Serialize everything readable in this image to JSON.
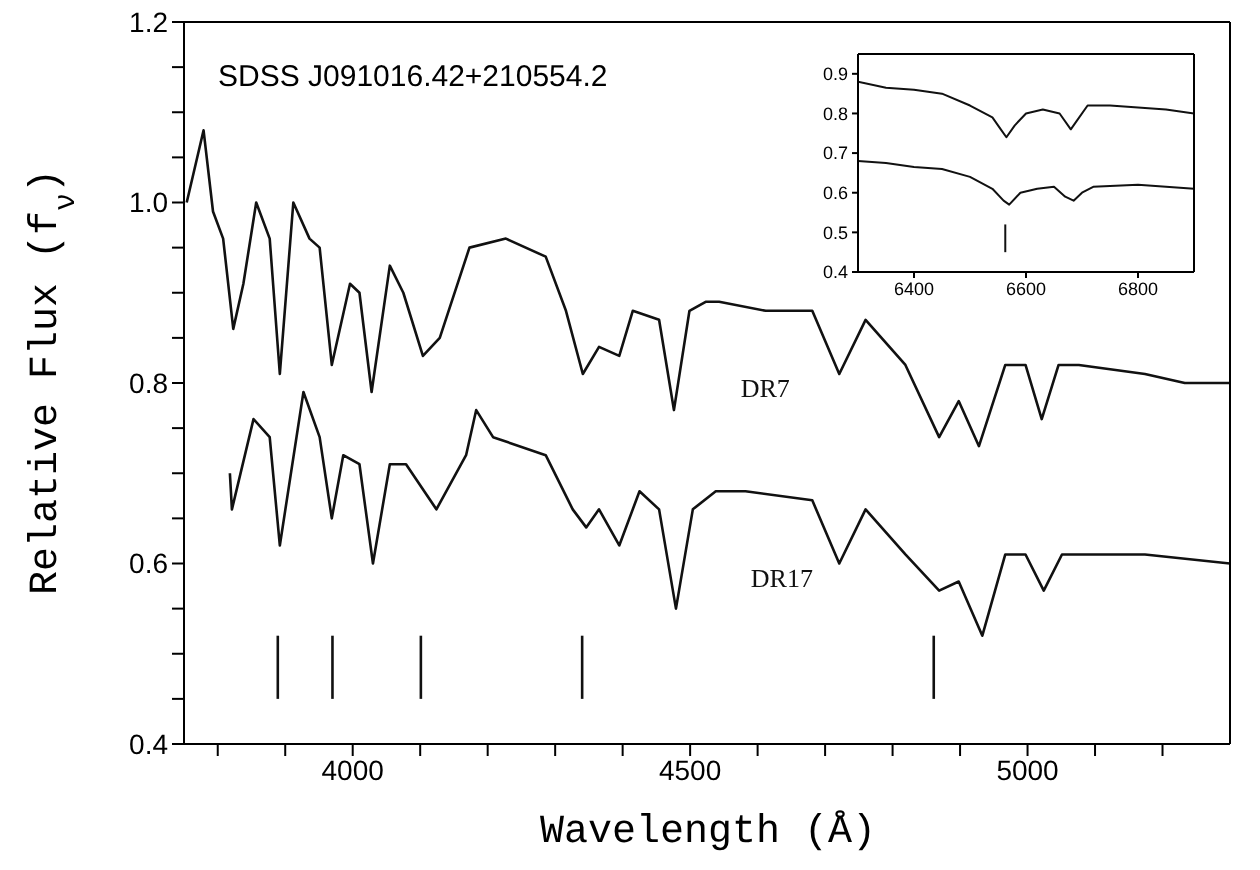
{
  "chart_data": [
    {
      "type": "line",
      "title": "SDSS J091016.42+210554.2",
      "xlabel": "Wavelength (Å)",
      "ylabel": "Relative Flux (f$_{ν}$)",
      "xlim": [
        3750,
        5300
      ],
      "xticks": [
        {
          "value": 3800,
          "label": null
        },
        {
          "value": 3900,
          "label": null
        },
        4000,
        {
          "value": 4100,
          "label": null
        },
        {
          "value": 4200,
          "label": null
        },
        {
          "value": 4300,
          "label": null
        },
        {
          "value": 4400,
          "label": null
        },
        4500,
        {
          "value": 4600,
          "label": null
        },
        {
          "value": 4700,
          "label": null
        },
        {
          "value": 4800,
          "label": null
        },
        {
          "value": 4900,
          "label": null
        },
        5000,
        {
          "value": 5100,
          "label": null
        },
        {
          "value": 5200,
          "label": null
        }
      ],
      "ylim": [
        0.4,
        1.2
      ],
      "yticks": [
        0.4,
        {
          "value": 0.45,
          "label": null
        },
        {
          "value": 0.5,
          "label": null
        },
        {
          "value": 0.55,
          "label": null
        },
        0.6,
        {
          "value": 0.65,
          "label": null
        },
        {
          "value": 0.7,
          "label": null
        },
        {
          "value": 0.75,
          "label": null
        },
        0.8,
        {
          "value": 0.85,
          "label": null
        },
        {
          "value": 0.9,
          "label": null
        },
        {
          "value": 0.95,
          "label": null
        },
        {
          "value": 1.0,
          "label": "1.0"
        },
        {
          "value": 1.05,
          "label": null
        },
        {
          "value": 1.1,
          "label": null
        },
        {
          "value": 1.15,
          "label": null
        },
        1.2
      ],
      "series": [
        {
          "name": "DR7",
          "color": "#111111",
          "x": [
            3754,
            3779,
            3793,
            3808,
            3823,
            3838,
            3857,
            3877,
            3892,
            3912,
            3936,
            3951,
            3969,
            3996,
            4010,
            4028,
            4055,
            4075,
            4104,
            4129,
            4173,
            4227,
            4286,
            4316,
            4341,
            4365,
            4395,
            4415,
            4454,
            4476,
            4499,
            4523,
            4543,
            4612,
            4681,
            4721,
            4760,
            4819,
            4869,
            4898,
            4928,
            4967,
            4997,
            5021,
            5046,
            5076,
            5174,
            5233,
            5300
          ],
          "values": [
            1.0,
            1.08,
            0.99,
            0.96,
            0.86,
            0.91,
            1.0,
            0.96,
            0.81,
            1.0,
            0.96,
            0.95,
            0.82,
            0.91,
            0.9,
            0.79,
            0.93,
            0.9,
            0.83,
            0.85,
            0.95,
            0.96,
            0.94,
            0.88,
            0.81,
            0.84,
            0.83,
            0.88,
            0.87,
            0.77,
            0.88,
            0.89,
            0.89,
            0.88,
            0.88,
            0.81,
            0.87,
            0.82,
            0.74,
            0.78,
            0.73,
            0.82,
            0.82,
            0.76,
            0.82,
            0.82,
            0.81,
            0.8,
            0.8
          ]
        },
        {
          "name": "DR17",
          "color": "#111111",
          "x": [
            3818,
            3821,
            3853,
            3877,
            3892,
            3927,
            3951,
            3969,
            3986,
            4010,
            4030,
            4055,
            4079,
            4124,
            4168,
            4183,
            4208,
            4286,
            4326,
            4346,
            4365,
            4395,
            4425,
            4454,
            4479,
            4504,
            4538,
            4582,
            4681,
            4721,
            4760,
            4819,
            4869,
            4898,
            4933,
            4967,
            4997,
            5024,
            5051,
            5095,
            5174,
            5300
          ],
          "values": [
            0.7,
            0.66,
            0.76,
            0.74,
            0.62,
            0.79,
            0.74,
            0.65,
            0.72,
            0.71,
            0.6,
            0.71,
            0.71,
            0.66,
            0.72,
            0.77,
            0.74,
            0.72,
            0.66,
            0.64,
            0.66,
            0.62,
            0.68,
            0.66,
            0.55,
            0.66,
            0.68,
            0.68,
            0.67,
            0.6,
            0.66,
            0.61,
            0.57,
            0.58,
            0.52,
            0.61,
            0.61,
            0.57,
            0.61,
            0.61,
            0.61,
            0.6
          ]
        },
        {
          "color": "#111111",
          "x": [
            3889,
            3889
          ],
          "values": [
            0.45,
            0.52
          ]
        },
        {
          "color": "#111111",
          "x": [
            3970,
            3970
          ],
          "values": [
            0.45,
            0.52
          ]
        },
        {
          "color": "#111111",
          "x": [
            4101,
            4101
          ],
          "values": [
            0.45,
            0.52
          ]
        },
        {
          "color": "#111111",
          "x": [
            4340,
            4340
          ],
          "values": [
            0.45,
            0.52
          ]
        },
        {
          "color": "#111111",
          "x": [
            4861,
            4861
          ],
          "values": [
            0.45,
            0.52
          ]
        }
      ]
    },
    {
      "type": "line",
      "xlim": [
        6300,
        6900
      ],
      "xticks": [
        6400,
        6600,
        6800
      ],
      "ylim": [
        0.4,
        0.95
      ],
      "yticks": [
        0.4,
        0.5,
        0.6,
        0.7,
        0.8,
        0.9
      ],
      "series": [
        {
          "color": "#111111",
          "x": [
            6300,
            6350,
            6400,
            6450,
            6500,
            6540,
            6555,
            6565,
            6580,
            6600,
            6630,
            6660,
            6680,
            6690,
            6710,
            6750,
            6800,
            6850,
            6900
          ],
          "values": [
            0.88,
            0.865,
            0.86,
            0.85,
            0.82,
            0.79,
            0.76,
            0.74,
            0.77,
            0.8,
            0.81,
            0.8,
            0.76,
            0.78,
            0.82,
            0.82,
            0.815,
            0.81,
            0.8
          ]
        },
        {
          "color": "#111111",
          "x": [
            6300,
            6350,
            6400,
            6450,
            6500,
            6540,
            6560,
            6570,
            6590,
            6620,
            6650,
            6670,
            6685,
            6700,
            6720,
            6800,
            6850,
            6900
          ],
          "values": [
            0.68,
            0.675,
            0.665,
            0.66,
            0.64,
            0.61,
            0.58,
            0.57,
            0.6,
            0.61,
            0.615,
            0.59,
            0.58,
            0.6,
            0.615,
            0.62,
            0.615,
            0.61
          ]
        },
        {
          "color": "#111111",
          "x": [
            6563,
            6563
          ],
          "values": [
            0.45,
            0.52
          ]
        }
      ]
    }
  ]
}
